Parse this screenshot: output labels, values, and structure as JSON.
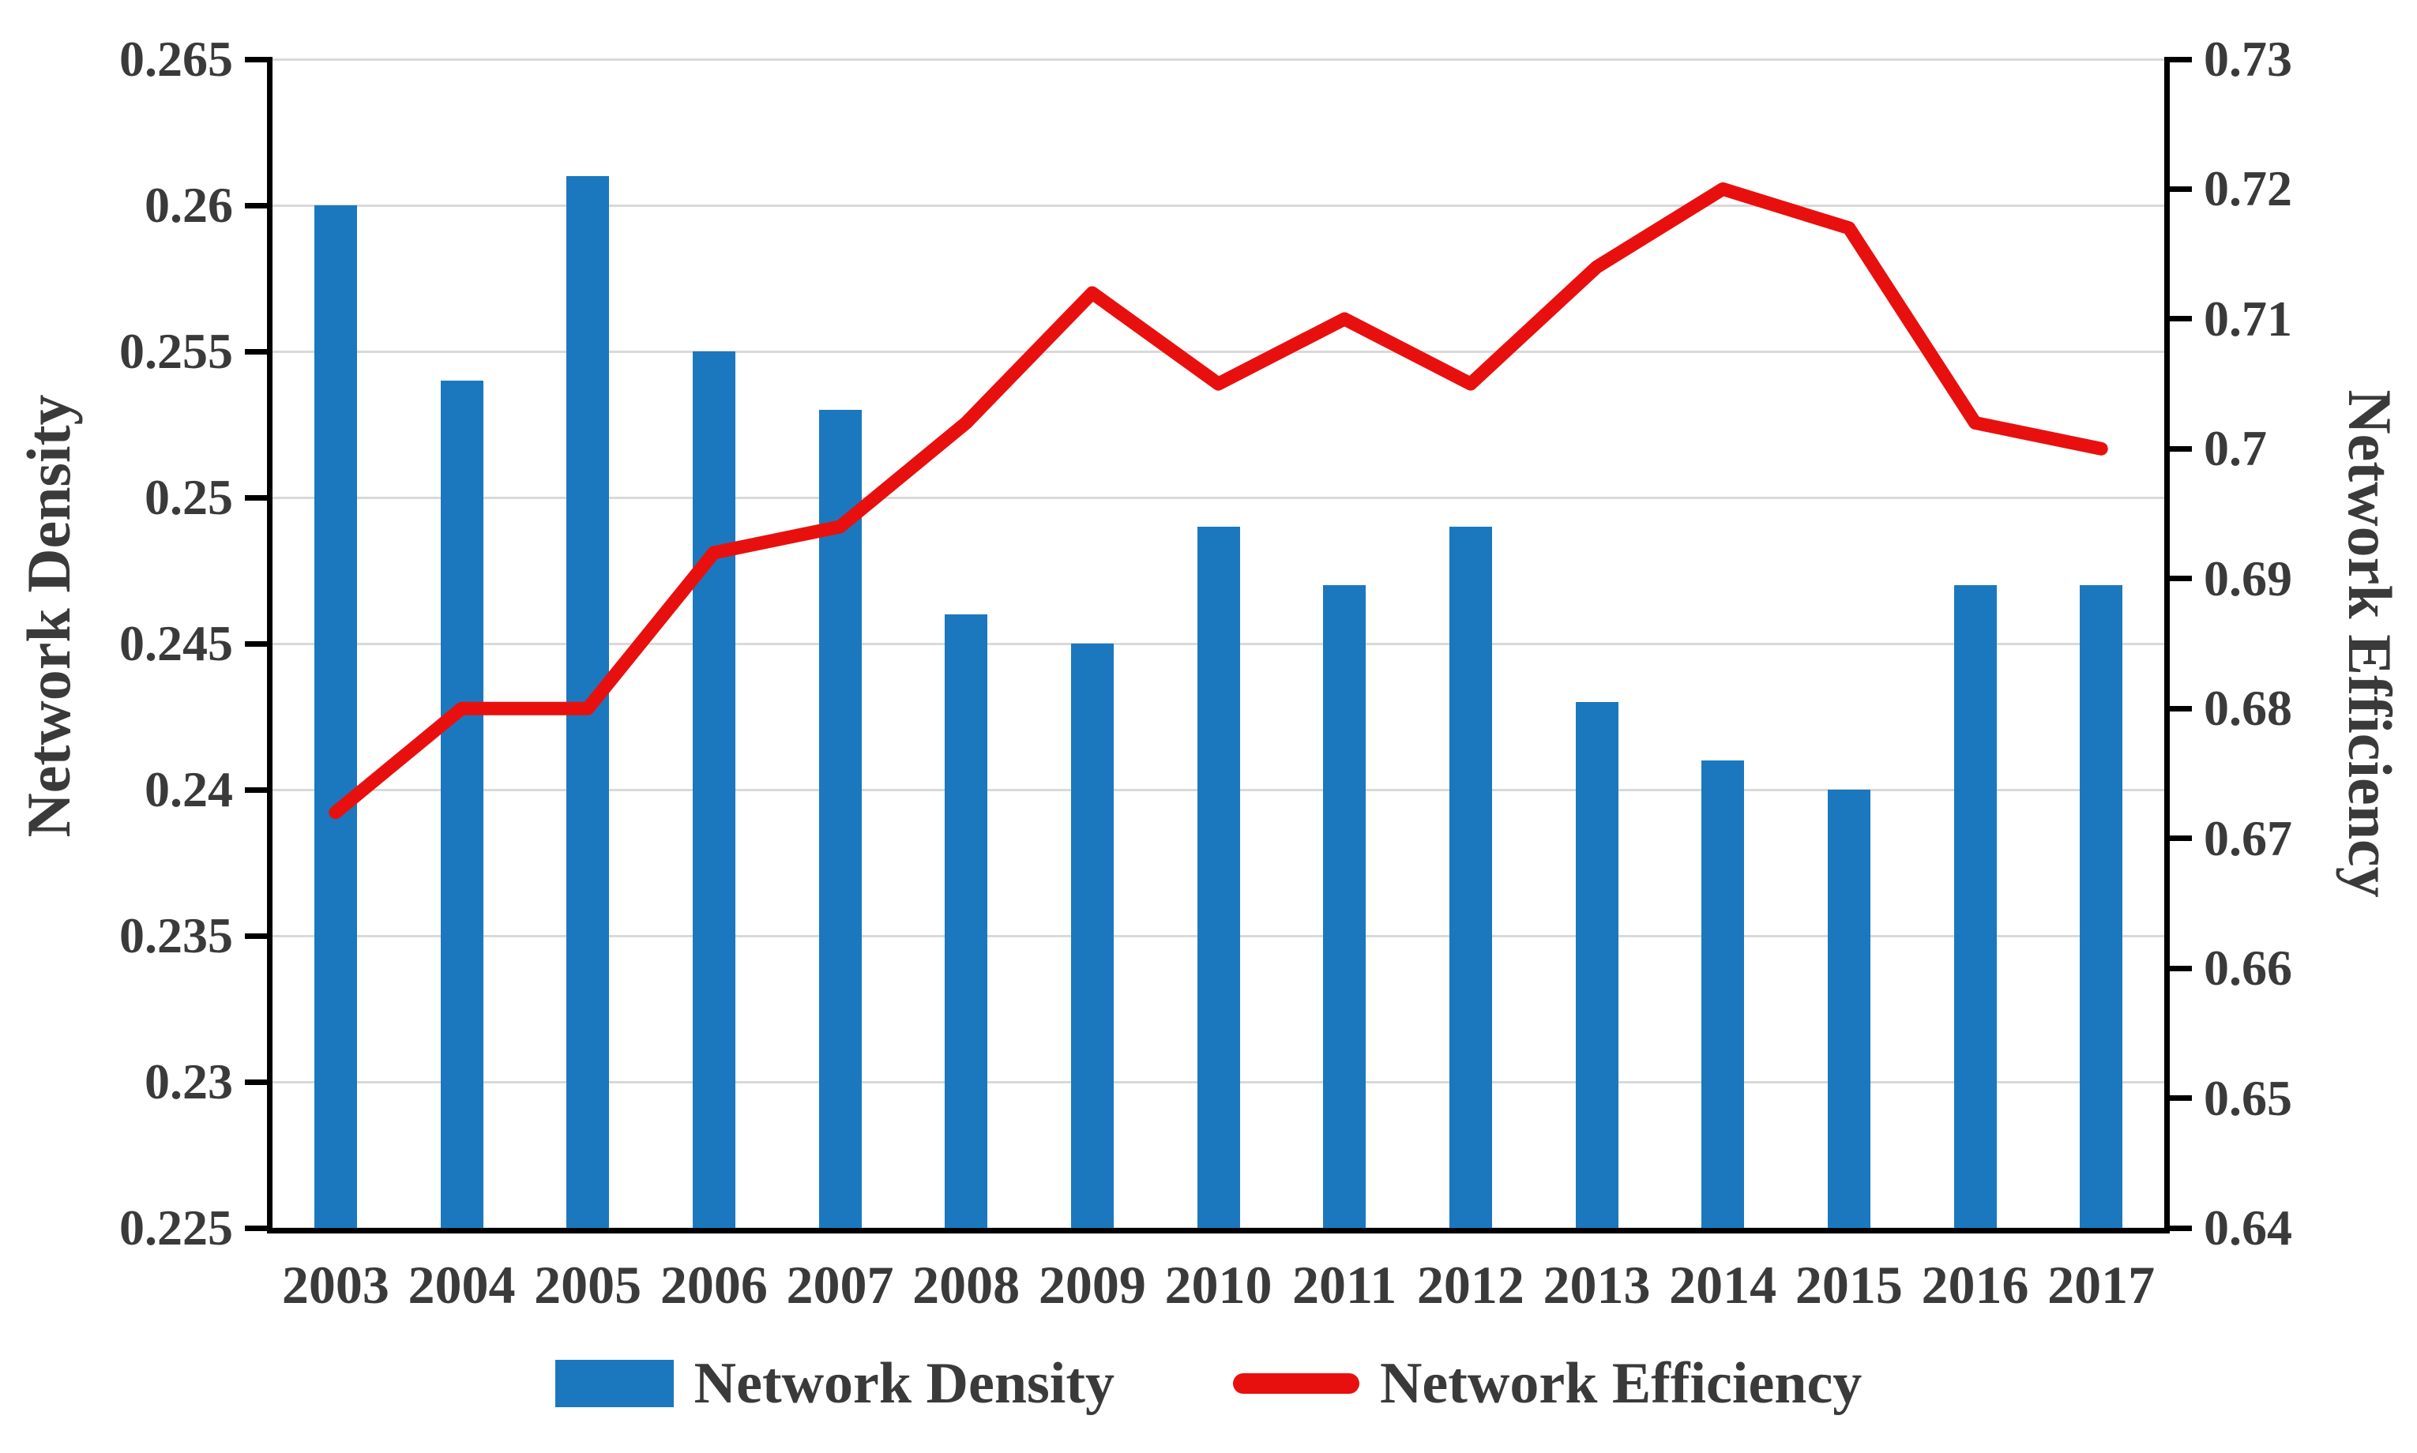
{
  "colors": {
    "bar": "#1b78be",
    "line": "#e8100f",
    "grid": "#d9d9d9",
    "axis": "#000000",
    "text": "#3a3a3a",
    "background": "#ffffff"
  },
  "chart_data": {
    "type": "bar",
    "categories": [
      "2003",
      "2004",
      "2005",
      "2006",
      "2007",
      "2008",
      "2009",
      "2010",
      "2011",
      "2012",
      "2013",
      "2014",
      "2015",
      "2016",
      "2017"
    ],
    "series": [
      {
        "name": "Network Density",
        "type": "bar",
        "axis": "left",
        "values": [
          0.26,
          0.254,
          0.261,
          0.255,
          0.253,
          0.246,
          0.245,
          0.249,
          0.247,
          0.249,
          0.243,
          0.241,
          0.24,
          0.247,
          0.247
        ]
      },
      {
        "name": "Network Efficiency",
        "type": "line",
        "axis": "right",
        "values": [
          0.672,
          0.68,
          0.68,
          0.692,
          0.694,
          0.702,
          0.712,
          0.705,
          0.71,
          0.705,
          0.714,
          0.72,
          0.717,
          0.702,
          0.7
        ]
      }
    ],
    "left_axis": {
      "label": "Network Density",
      "min": 0.225,
      "max": 0.265,
      "tick_step": 0.005,
      "ticks": [
        "0.265",
        "0.26",
        "0.255",
        "0.25",
        "0.245",
        "0.24",
        "0.235",
        "0.23",
        "0.225"
      ]
    },
    "right_axis": {
      "label": "Network Efficiency",
      "min": 0.64,
      "max": 0.73,
      "tick_step": 0.01,
      "ticks": [
        "0.73",
        "0.72",
        "0.71",
        "0.7",
        "0.69",
        "0.68",
        "0.67",
        "0.66",
        "0.65",
        "0.64"
      ]
    },
    "legend": {
      "position": "bottom",
      "entries": [
        "Network Density",
        "Network Efficiency"
      ]
    },
    "grid": true,
    "title": "",
    "xlabel": ""
  }
}
